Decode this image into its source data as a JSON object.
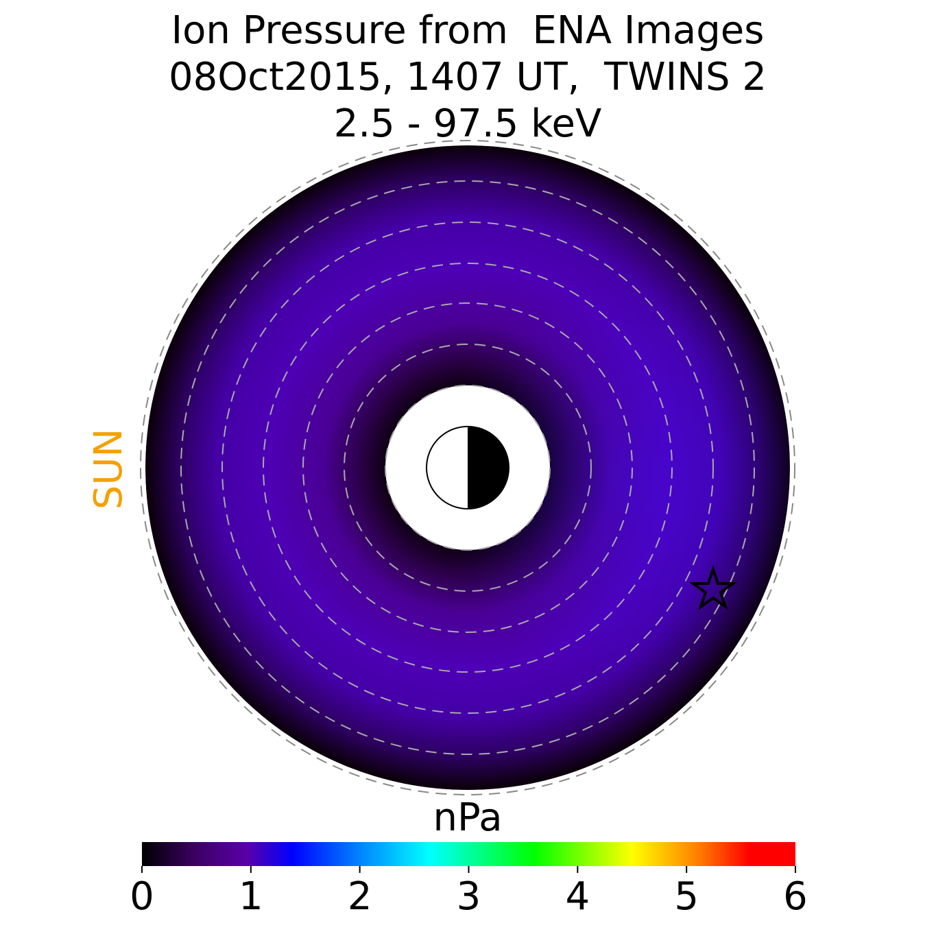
{
  "chart_data": {
    "type": "polar_map",
    "title": [
      "Ion Pressure from  ENA Images",
      "08Oct2015, 1407 UT,  TWINS 2",
      "2.5 - 97.5 keV"
    ],
    "sun_label": "SUN",
    "colorbar": {
      "label": "nPa",
      "lim": [
        0,
        6
      ],
      "ticks": [
        0,
        1,
        2,
        3,
        4,
        5,
        6
      ]
    }
  }
}
